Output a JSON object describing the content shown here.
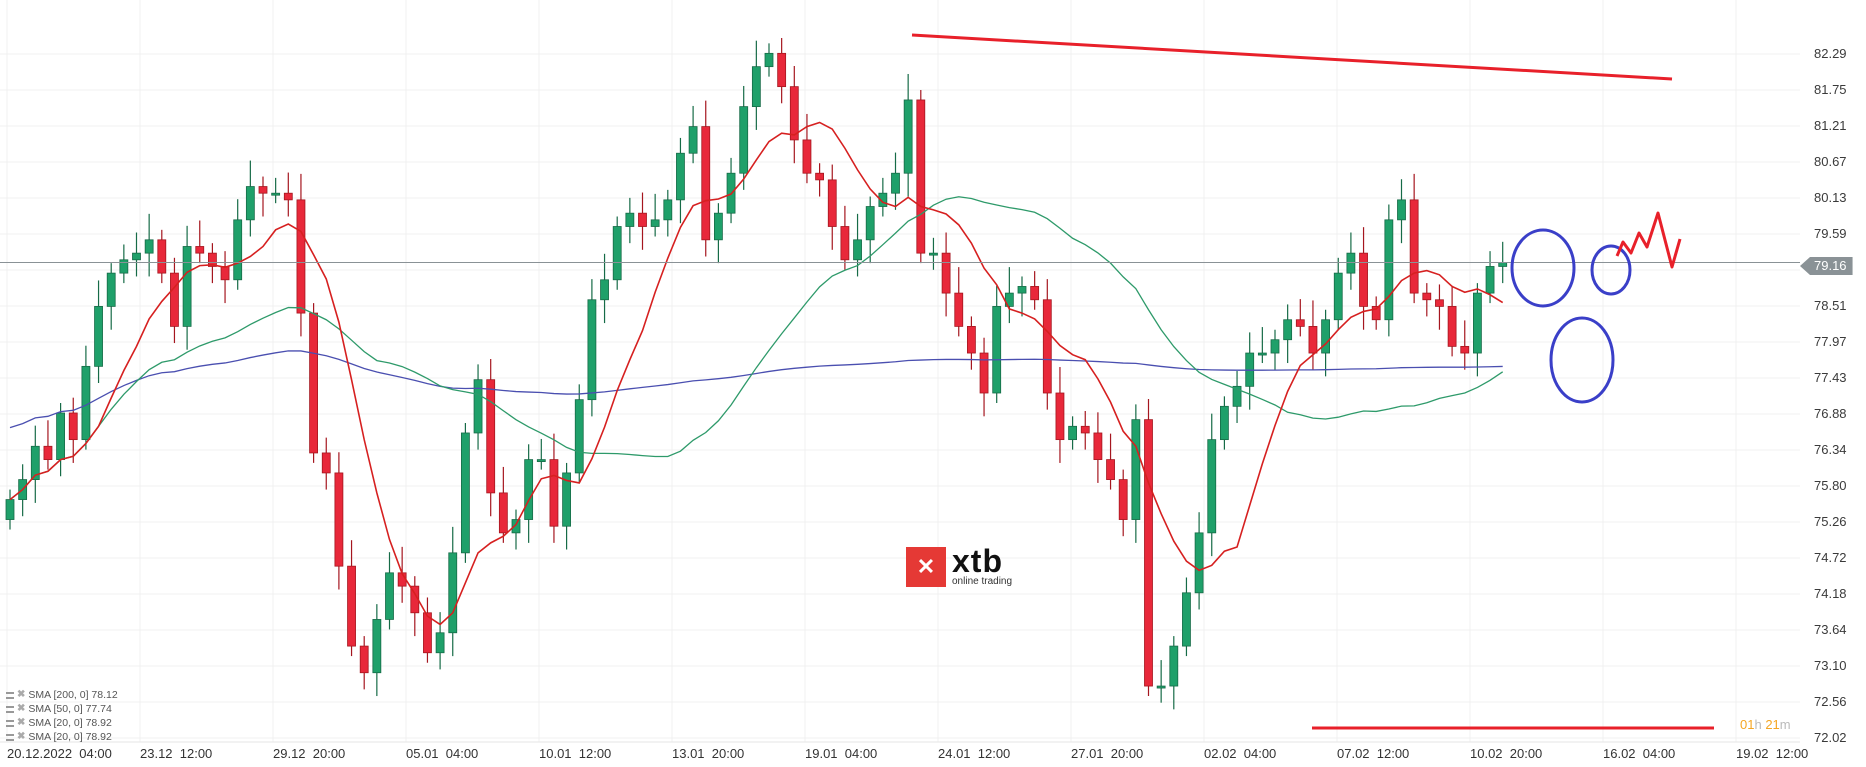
{
  "chart_data": {
    "type": "candlestick",
    "title": "",
    "instrument_logo": "xtb online trading",
    "y_axis": {
      "ticks": [
        "82.29",
        "81.75",
        "81.21",
        "80.67",
        "80.13",
        "79.59",
        "79.05",
        "78.51",
        "77.97",
        "77.43",
        "76.88",
        "76.34",
        "75.80",
        "75.26",
        "74.72",
        "74.18",
        "73.64",
        "73.10",
        "72.56",
        "72.02"
      ],
      "range": [
        72.02,
        82.29
      ],
      "current_price": "79.16"
    },
    "x_axis": {
      "ticks": [
        "20.12.2022  04:00",
        "23.12  12:00",
        "29.12  20:00",
        "05.01  04:00",
        "10.01  12:00",
        "13.01  20:00",
        "19.01  04:00",
        "24.01  12:00",
        "27.01  20:00",
        "02.02  04:00",
        "07.02  12:00",
        "10.02  20:00",
        "16.02  04:00",
        "19.02  12:00"
      ]
    },
    "legend": [
      {
        "label": "SMA [200, 0] 78.12",
        "color": "#4a4fb0"
      },
      {
        "label": "SMA [50, 0] 77.74",
        "color": "#2e9a6a"
      },
      {
        "label": "SMA [20, 0] 78.92",
        "color": "#d62020"
      },
      {
        "label": "SMA [20, 0] 78.92",
        "color": "#d62020"
      }
    ],
    "candle_closes_approx": [
      75.6,
      75.9,
      76.4,
      76.2,
      76.9,
      76.5,
      77.6,
      78.5,
      79.0,
      79.2,
      79.3,
      79.5,
      79.0,
      78.2,
      79.4,
      79.3,
      79.1,
      78.9,
      79.8,
      80.3,
      80.2,
      80.2,
      80.1,
      78.4,
      76.3,
      76.0,
      74.6,
      73.4,
      73.0,
      73.8,
      74.5,
      74.3,
      73.9,
      73.3,
      73.6,
      74.8,
      76.6,
      77.4,
      75.7,
      75.1,
      75.3,
      76.2,
      76.2,
      75.2,
      76.0,
      77.1,
      78.6,
      78.9,
      79.7,
      79.9,
      79.7,
      79.8,
      80.1,
      80.8,
      81.2,
      79.5,
      79.9,
      80.5,
      81.5,
      82.1,
      82.3,
      81.8,
      81.0,
      80.5,
      80.4,
      79.7,
      79.2,
      79.5,
      80.0,
      80.2,
      80.5,
      81.6,
      79.3,
      79.3,
      78.7,
      78.2,
      77.8,
      77.2,
      78.5,
      78.7,
      78.8,
      78.6,
      77.2,
      76.5,
      76.7,
      76.6,
      76.2,
      75.9,
      75.3,
      76.8,
      72.8,
      72.8,
      73.4,
      74.2,
      75.1,
      76.5,
      77.0,
      77.3,
      77.8,
      77.8,
      78.0,
      78.3,
      78.2,
      77.8,
      78.3,
      79.0,
      79.3,
      78.5,
      78.3,
      79.8,
      80.1,
      78.7,
      78.6,
      78.5,
      77.9,
      77.8,
      78.7,
      79.1,
      79.16
    ],
    "annotations": {
      "resistance_line": {
        "from": [
          82.4,
          "19.01 high"
        ],
        "to": [
          81.97,
          "projection"
        ],
        "color": "#e8202a"
      },
      "support_line": {
        "level": 72.3,
        "color": "#e8202a"
      },
      "circles": 3,
      "projection_zigzag": true
    }
  },
  "timer": {
    "hours": "01",
    "h": "h",
    "minutes": "21",
    "m": "m"
  },
  "logo": {
    "mark": "✕",
    "name": "xtb",
    "tagline": "online trading"
  }
}
